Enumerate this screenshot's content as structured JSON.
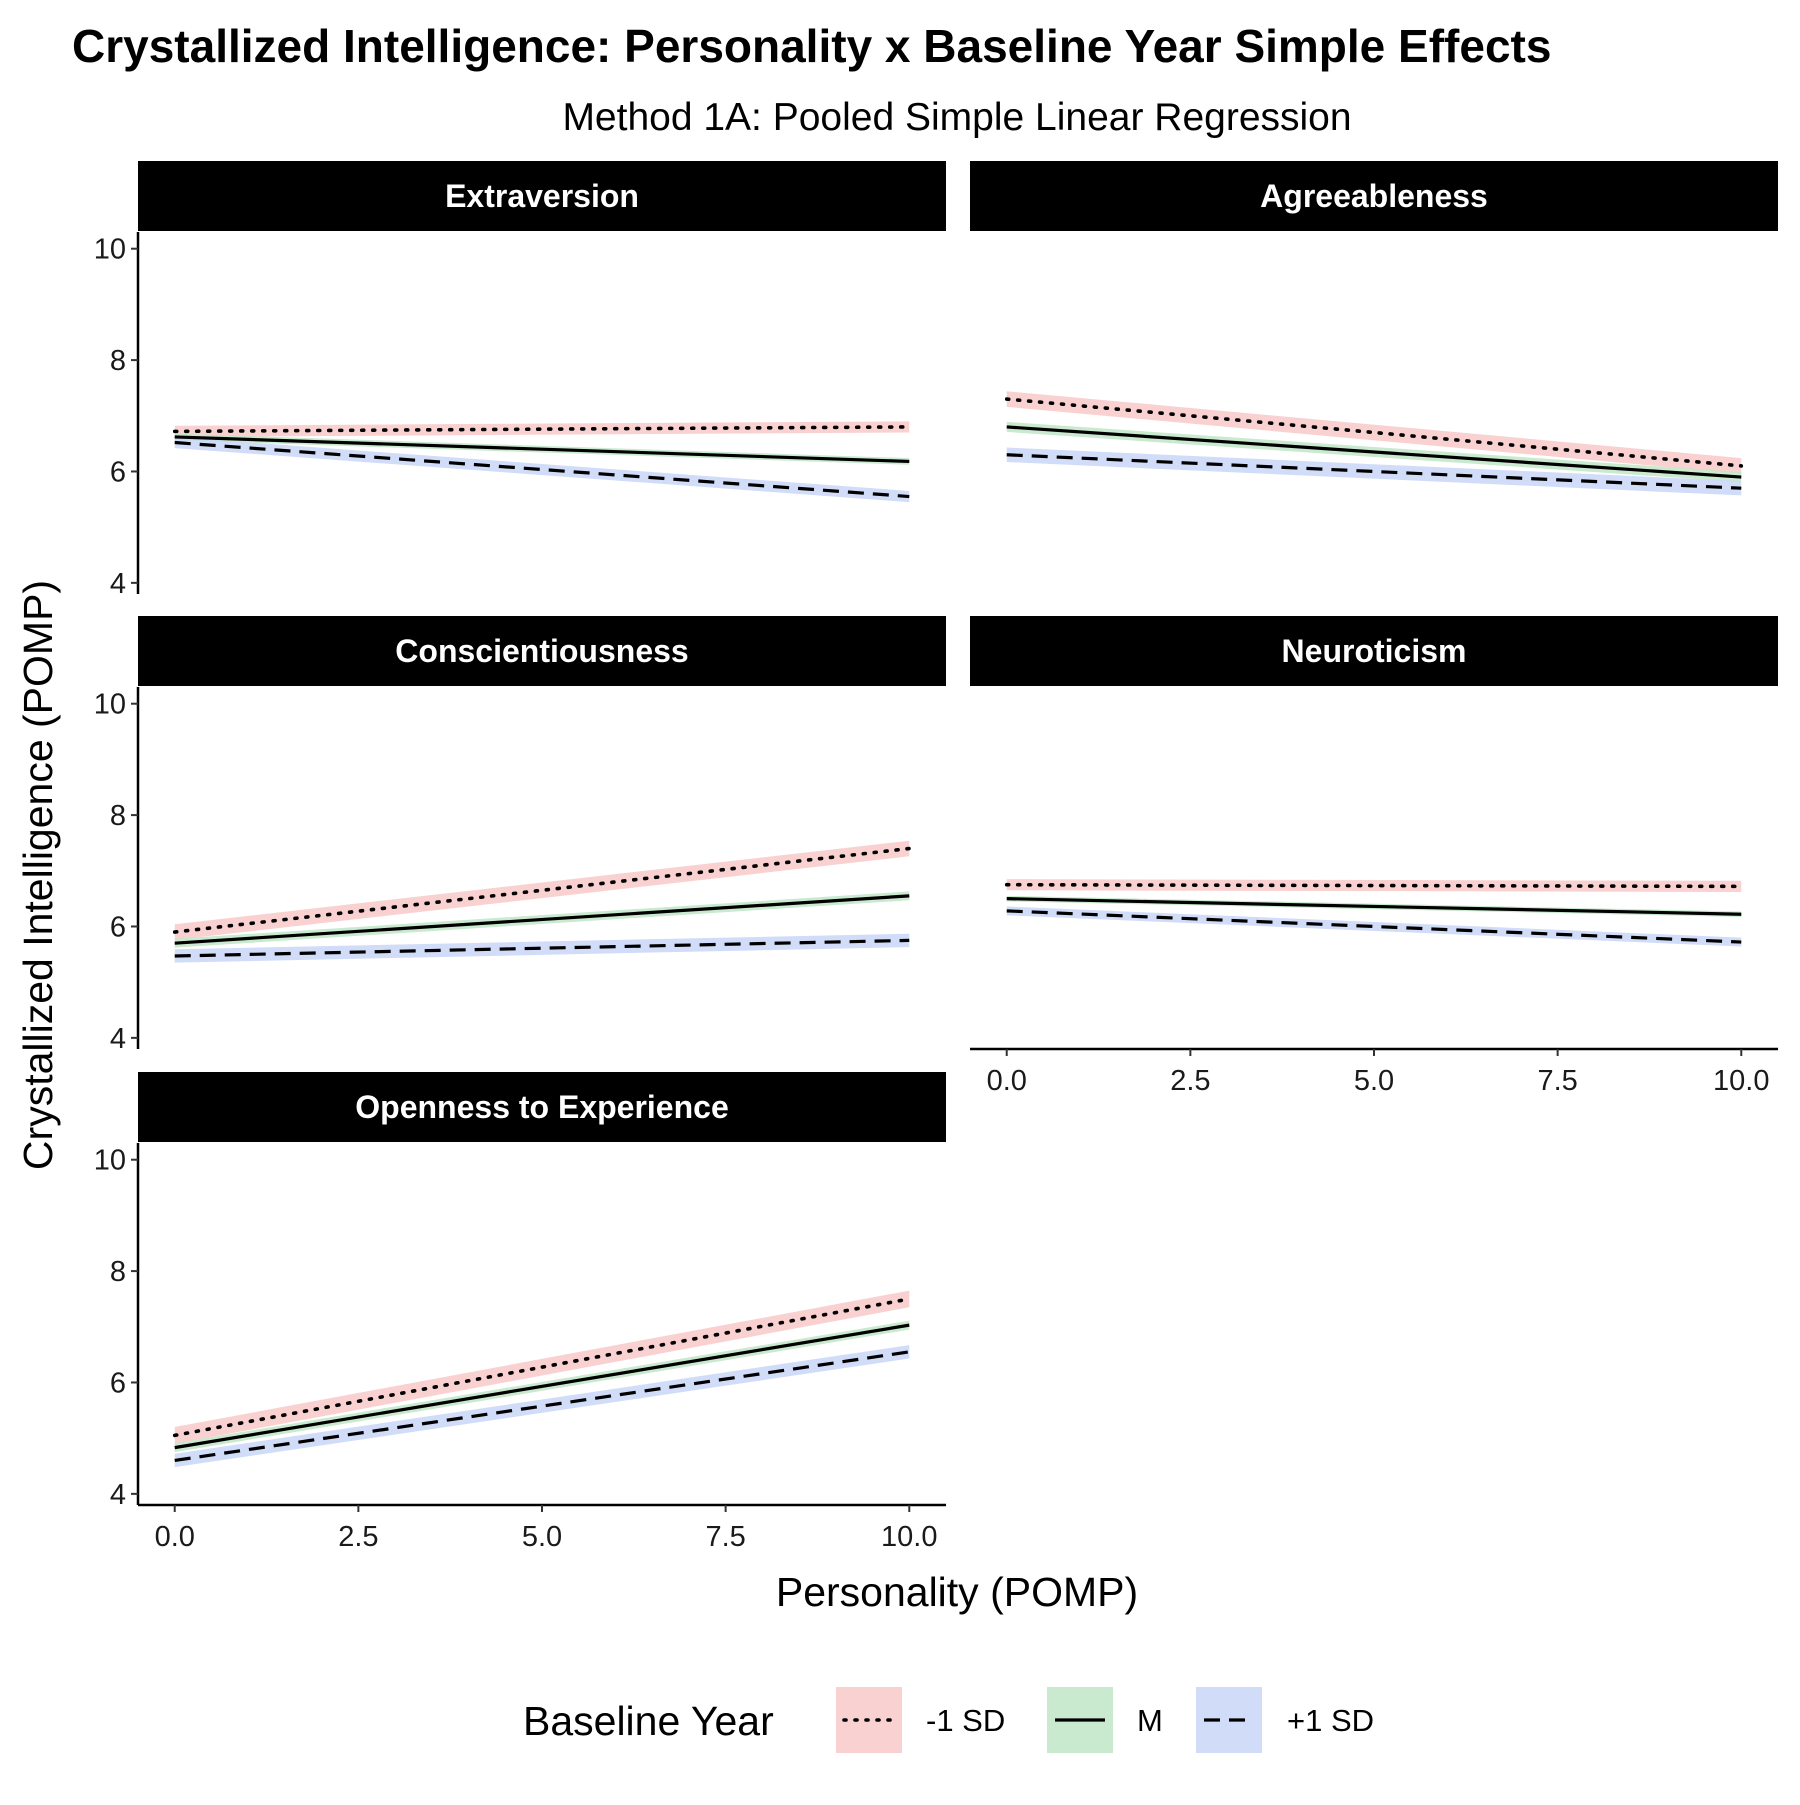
{
  "chart_data": {
    "type": "line",
    "title": "Crystallized Intelligence: Personality x Baseline Year Simple Effects",
    "subtitle": "Method 1A: Pooled Simple Linear Regression",
    "xlabel": "Personality (POMP)",
    "ylabel": "Crystallized Intelligence (POMP)",
    "xlim": [
      -0.5,
      10.5
    ],
    "ylim": [
      3.8,
      10.3
    ],
    "x_ticks": [
      0,
      2.5,
      5,
      7.5,
      10
    ],
    "x_tick_labels": [
      "0.0",
      "2.5",
      "5.0",
      "7.5",
      "10.0"
    ],
    "y_ticks": [
      4,
      6,
      8,
      10
    ],
    "y_tick_labels": [
      "4",
      "6",
      "8",
      "10"
    ],
    "legend": {
      "title": "Baseline Year",
      "position": "bottom",
      "entries": [
        {
          "label": "-1 SD",
          "dash": "dotted",
          "fill": "#f8c9c9"
        },
        {
          "label": "M",
          "dash": "solid",
          "fill": "#bfe6c6"
        },
        {
          "label": "+1 SD",
          "dash": "dashed",
          "fill": "#c9d6f7"
        }
      ]
    },
    "facets": [
      {
        "name": "Extraversion",
        "series": [
          {
            "name": "-1 SD",
            "x": [
              0,
              10
            ],
            "y": [
              6.72,
              6.8
            ],
            "ci_halfwidth": 0.1
          },
          {
            "name": "M",
            "x": [
              0,
              10
            ],
            "y": [
              6.62,
              6.18
            ],
            "ci_halfwidth": 0.06
          },
          {
            "name": "+1 SD",
            "x": [
              0,
              10
            ],
            "y": [
              6.52,
              5.55
            ],
            "ci_halfwidth": 0.1
          }
        ]
      },
      {
        "name": "Agreeableness",
        "series": [
          {
            "name": "-1 SD",
            "x": [
              0,
              10
            ],
            "y": [
              7.3,
              6.1
            ],
            "ci_halfwidth": 0.14
          },
          {
            "name": "M",
            "x": [
              0,
              10
            ],
            "y": [
              6.8,
              5.9
            ],
            "ci_halfwidth": 0.09
          },
          {
            "name": "+1 SD",
            "x": [
              0,
              10
            ],
            "y": [
              6.3,
              5.7
            ],
            "ci_halfwidth": 0.13
          }
        ]
      },
      {
        "name": "Conscientiousness",
        "series": [
          {
            "name": "-1 SD",
            "x": [
              0,
              10
            ],
            "y": [
              5.9,
              7.4
            ],
            "ci_halfwidth": 0.14
          },
          {
            "name": "M",
            "x": [
              0,
              10
            ],
            "y": [
              5.7,
              6.55
            ],
            "ci_halfwidth": 0.08
          },
          {
            "name": "+1 SD",
            "x": [
              0,
              10
            ],
            "y": [
              5.47,
              5.75
            ],
            "ci_halfwidth": 0.12
          }
        ]
      },
      {
        "name": "Neuroticism",
        "series": [
          {
            "name": "-1 SD",
            "x": [
              0,
              10
            ],
            "y": [
              6.75,
              6.72
            ],
            "ci_halfwidth": 0.1
          },
          {
            "name": "M",
            "x": [
              0,
              10
            ],
            "y": [
              6.5,
              6.22
            ],
            "ci_halfwidth": 0.05
          },
          {
            "name": "+1 SD",
            "x": [
              0,
              10
            ],
            "y": [
              6.28,
              5.72
            ],
            "ci_halfwidth": 0.08
          }
        ]
      },
      {
        "name": "Openness to Experience",
        "series": [
          {
            "name": "-1 SD",
            "x": [
              0,
              10
            ],
            "y": [
              5.05,
              7.5
            ],
            "ci_halfwidth": 0.15
          },
          {
            "name": "M",
            "x": [
              0,
              10
            ],
            "y": [
              4.83,
              7.03
            ],
            "ci_halfwidth": 0.08
          },
          {
            "name": "+1 SD",
            "x": [
              0,
              10
            ],
            "y": [
              4.6,
              6.55
            ],
            "ci_halfwidth": 0.12
          }
        ]
      }
    ]
  }
}
